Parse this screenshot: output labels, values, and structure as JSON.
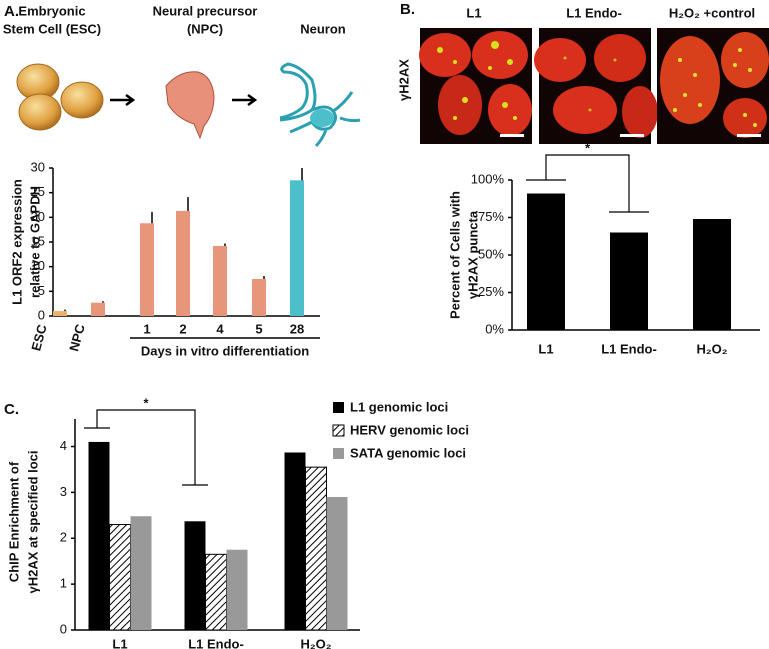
{
  "panel_labels": [
    "A.",
    "B.",
    "C."
  ],
  "illustration_labels": [
    [
      "Embryonic",
      "Stem Cell (ESC)"
    ],
    [
      "Neural precursor",
      "(NPC)"
    ],
    [
      "Neuron"
    ]
  ],
  "micrographs": {
    "stain": "γH2AX",
    "conditions": [
      "L1",
      "L1 Endo-",
      "H₂O₂ +control"
    ]
  },
  "chart_data": [
    {
      "type": "bar",
      "y_label": [
        "L1 ORF2 expression",
        "relative to GAPDH"
      ],
      "x_label": "Days in vitro differentiation",
      "categories": [
        "ESC",
        "NPC",
        "1",
        "2",
        "4",
        "5",
        "28"
      ],
      "values": [
        1.0,
        2.7,
        18.8,
        21.3,
        14.2,
        7.5,
        27.5
      ],
      "errors": [
        0.3,
        0.3,
        2.3,
        2.8,
        0.5,
        0.6,
        2.5
      ],
      "colors": [
        "#e9b36f",
        "#e8967a",
        "#e8967a",
        "#e8967a",
        "#e8967a",
        "#e8967a",
        "#4cbfca"
      ],
      "ylim": [
        0,
        30
      ],
      "yticks": [
        0,
        5,
        10,
        15,
        20,
        25,
        30
      ]
    },
    {
      "type": "bar",
      "y_label": [
        "Percent of Cells with",
        "γH2AX puncta"
      ],
      "categories": [
        "L1",
        "L1 Endo-",
        "H₂O₂"
      ],
      "values": [
        91,
        65,
        74
      ],
      "color": "#000000",
      "significance": "*",
      "ylim": [
        0,
        100
      ],
      "yticks": [
        {
          "value": 0,
          "label": "0%"
        },
        {
          "value": 25,
          "label": "25%"
        },
        {
          "value": 50,
          "label": "50%"
        },
        {
          "value": 75,
          "label": "75%"
        },
        {
          "value": 100,
          "label": "100%"
        }
      ]
    },
    {
      "type": "grouped_bar",
      "y_label": [
        "ChIP Enrichment of",
        "γH2AX at specified loci"
      ],
      "categories": [
        "L1",
        "L1 Endo-",
        "H₂O₂"
      ],
      "series": [
        {
          "name": "L1 genomic loci",
          "color": "#000000",
          "values": [
            4.1,
            2.37,
            3.87
          ]
        },
        {
          "name": "HERV genomic loci",
          "color": "#000000",
          "pattern": "hatch",
          "values": [
            2.3,
            1.65,
            3.55
          ]
        },
        {
          "name": "SATA genomic loci",
          "color": "#999999",
          "values": [
            2.48,
            1.75,
            2.9
          ]
        }
      ],
      "significance": "*",
      "ylim": [
        0,
        4.6
      ],
      "yticks": [
        0,
        1,
        2,
        3,
        4
      ]
    }
  ]
}
